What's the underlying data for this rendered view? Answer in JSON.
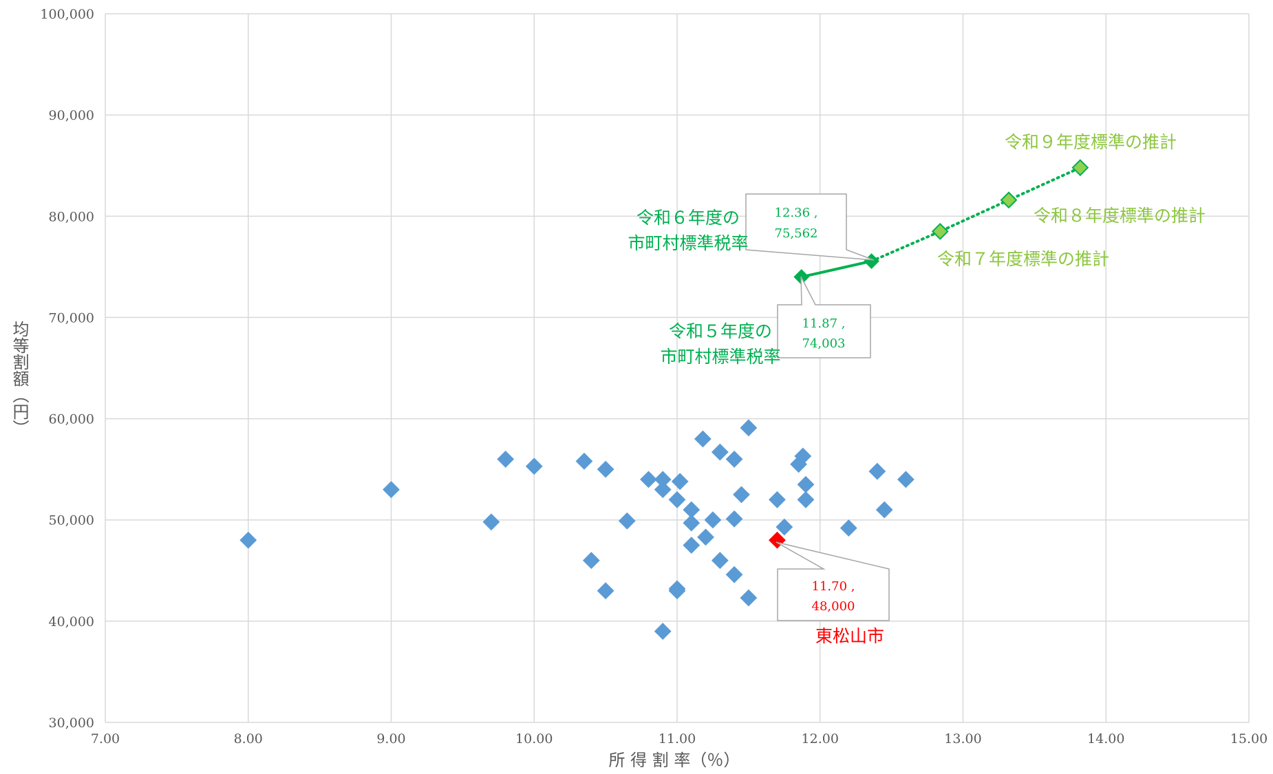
{
  "chart_data": {
    "type": "scatter",
    "xlabel": "所 得 割 率（％）",
    "ylabel": "均等割額（円）",
    "xlim": [
      7.0,
      15.0
    ],
    "ylim": [
      30000,
      100000
    ],
    "x_ticks": [
      "7.00",
      "8.00",
      "9.00",
      "10.00",
      "11.00",
      "12.00",
      "13.00",
      "14.00",
      "15.00"
    ],
    "y_ticks": [
      "30,000",
      "40,000",
      "50,000",
      "60,000",
      "70,000",
      "80,000",
      "90,000",
      "100,000"
    ],
    "grid": true,
    "colors": {
      "municipalities": "#5B9BD5",
      "highlight": "#FF0000",
      "standard": "#00B050",
      "projection": "#92D050",
      "projection_text": "#8CC63F"
    },
    "series": [
      {
        "id": "municipalities",
        "points": [
          {
            "x": 8.0,
            "y": 48000
          },
          {
            "x": 9.0,
            "y": 53000
          },
          {
            "x": 9.7,
            "y": 49800
          },
          {
            "x": 9.8,
            "y": 56000
          },
          {
            "x": 10.0,
            "y": 55300
          },
          {
            "x": 10.35,
            "y": 55800
          },
          {
            "x": 10.4,
            "y": 46000
          },
          {
            "x": 10.5,
            "y": 55000
          },
          {
            "x": 10.5,
            "y": 43000
          },
          {
            "x": 10.65,
            "y": 49900
          },
          {
            "x": 10.8,
            "y": 54000
          },
          {
            "x": 10.9,
            "y": 54000
          },
          {
            "x": 10.9,
            "y": 53000
          },
          {
            "x": 10.9,
            "y": 39000
          },
          {
            "x": 11.0,
            "y": 52000
          },
          {
            "x": 11.0,
            "y": 43200
          },
          {
            "x": 11.0,
            "y": 43000
          },
          {
            "x": 11.02,
            "y": 53800
          },
          {
            "x": 11.1,
            "y": 51000
          },
          {
            "x": 11.1,
            "y": 49700
          },
          {
            "x": 11.1,
            "y": 47500
          },
          {
            "x": 11.18,
            "y": 58000
          },
          {
            "x": 11.2,
            "y": 48300
          },
          {
            "x": 11.25,
            "y": 50000
          },
          {
            "x": 11.3,
            "y": 56700
          },
          {
            "x": 11.3,
            "y": 46000
          },
          {
            "x": 11.4,
            "y": 56000
          },
          {
            "x": 11.4,
            "y": 50100
          },
          {
            "x": 11.4,
            "y": 44600
          },
          {
            "x": 11.45,
            "y": 52500
          },
          {
            "x": 11.5,
            "y": 59100
          },
          {
            "x": 11.5,
            "y": 42300
          },
          {
            "x": 11.7,
            "y": 52000
          },
          {
            "x": 11.75,
            "y": 49300
          },
          {
            "x": 11.85,
            "y": 55500
          },
          {
            "x": 11.88,
            "y": 56300
          },
          {
            "x": 11.9,
            "y": 53500
          },
          {
            "x": 11.9,
            "y": 52000
          },
          {
            "x": 12.2,
            "y": 49200
          },
          {
            "x": 12.4,
            "y": 54800
          },
          {
            "x": 12.45,
            "y": 51000
          },
          {
            "x": 12.6,
            "y": 54000
          }
        ]
      },
      {
        "id": "higashimatsuyama",
        "points": [
          {
            "x": 11.7,
            "y": 48000
          }
        ]
      },
      {
        "id": "standard_rate",
        "points": [
          {
            "x": 11.87,
            "y": 74003
          },
          {
            "x": 12.36,
            "y": 75562
          }
        ]
      },
      {
        "id": "projection",
        "points": [
          {
            "x": 12.36,
            "y": 75562
          },
          {
            "x": 12.84,
            "y": 78500
          },
          {
            "x": 13.32,
            "y": 81600
          },
          {
            "x": 13.82,
            "y": 84800
          }
        ]
      }
    ],
    "annotations": {
      "r5_line1": "令和５年度の",
      "r5_line2": "市町村標準税率",
      "r6_line1": "令和６年度の",
      "r6_line2": "市町村標準税率",
      "r7": "令和７年度標準の推計",
      "r8": "令和８年度標準の推計",
      "r9": "令和９年度標準の推計",
      "city": "東松山市"
    },
    "callouts": {
      "r5_l1": "11.87 ,",
      "r5_l2": "74,003",
      "r6_l1": "12.36 ,",
      "r6_l2": "75,562",
      "city_l1": "11.70 ,",
      "city_l2": "48,000"
    }
  }
}
